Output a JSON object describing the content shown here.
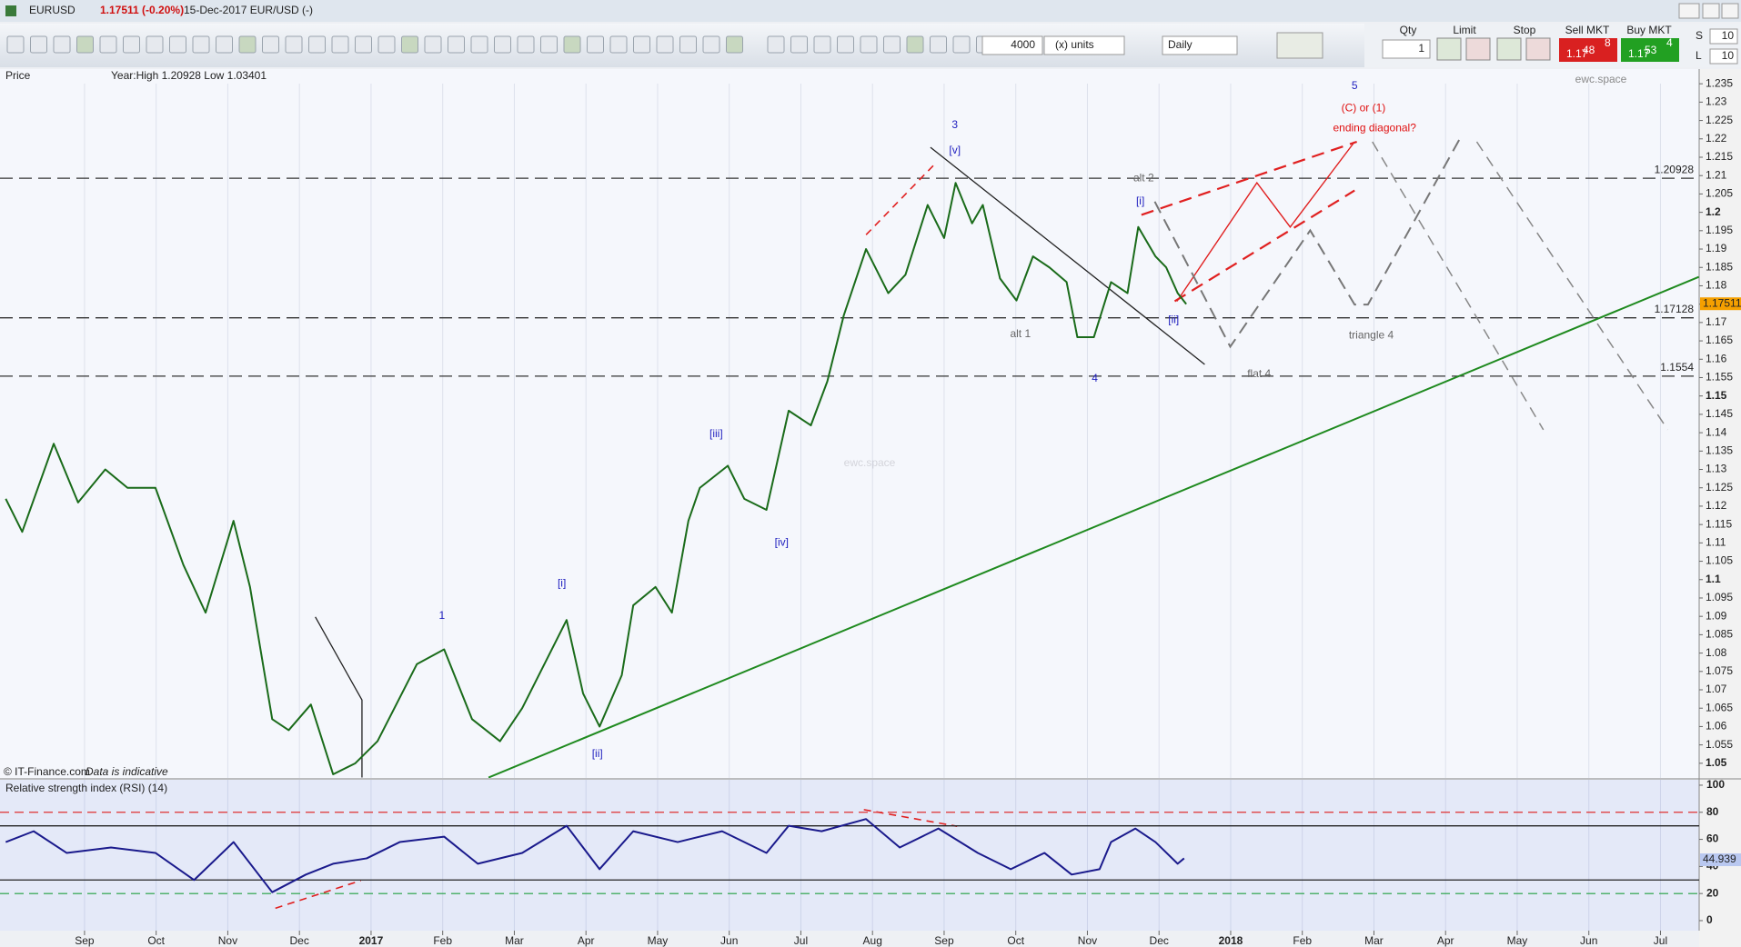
{
  "window": {
    "symbol": "EURUSD",
    "quote": "1.17511 (-0.20%)",
    "info": "15-Dec-2017 EUR/USD (-)"
  },
  "toolbar": {
    "qty_units": "4000",
    "units": "(x) units",
    "period": "Daily"
  },
  "order_panel": {
    "qty_label": "Qty",
    "qty": "1",
    "limit_label": "Limit",
    "stop_label": "Stop",
    "sell_label": "Sell MKT",
    "sell_prefix": "1.17",
    "sell_big": "48",
    "sell_pip": "8",
    "buy_label": "Buy MKT",
    "buy_prefix": "1.17",
    "buy_big": "53",
    "buy_pip": "4",
    "s_label": "S",
    "s_value": "10",
    "l_label": "L",
    "l_value": "10"
  },
  "chart_data": [
    {
      "type": "line",
      "panel_label": "Price",
      "title": "EURUSD",
      "stats": "Year:High 1.20928 Low 1.03401",
      "credit": "© IT-Finance.com",
      "note": "Data is indicative",
      "watermark": "ewc.space",
      "x": [
        -1.1,
        -0.87,
        -0.43,
        -0.09,
        0.29,
        0.6,
        0.99,
        1.38,
        1.69,
        2.08,
        2.31,
        2.62,
        2.85,
        3.16,
        3.47,
        3.78,
        4.09,
        4.64,
        5.02,
        5.41,
        5.8,
        6.11,
        6.42,
        6.73,
        6.96,
        7.19,
        7.5,
        7.66,
        7.97,
        8.2,
        8.43,
        8.59,
        8.98,
        9.21,
        9.52,
        9.83,
        10.14,
        10.37,
        10.6,
        10.91,
        11.22,
        11.46,
        11.77,
        12.0,
        12.16,
        12.39,
        12.54,
        12.78,
        13.01,
        13.24,
        13.47,
        13.71,
        13.86,
        14.09,
        14.33,
        14.56,
        14.71,
        14.95,
        15.1,
        15.26,
        15.38
      ],
      "values": [
        1.122,
        1.113,
        1.137,
        1.121,
        1.13,
        1.125,
        1.125,
        1.104,
        1.091,
        1.116,
        1.098,
        1.062,
        1.059,
        1.066,
        1.047,
        1.05,
        1.056,
        1.077,
        1.081,
        1.062,
        1.056,
        1.065,
        1.077,
        1.089,
        1.069,
        1.06,
        1.074,
        1.093,
        1.098,
        1.091,
        1.116,
        1.125,
        1.131,
        1.122,
        1.119,
        1.146,
        1.142,
        1.154,
        1.172,
        1.19,
        1.178,
        1.183,
        1.202,
        1.193,
        1.208,
        1.197,
        1.202,
        1.182,
        1.176,
        1.188,
        1.185,
        1.181,
        1.166,
        1.166,
        1.181,
        1.178,
        1.196,
        1.188,
        1.185,
        1.178,
        1.175
      ],
      "color": "#1a6b1a",
      "last_value": 1.17511,
      "xlim": [
        -1.18,
        22.54
      ],
      "ylim": [
        1.046,
        1.239
      ],
      "yticks": [
        1.05,
        1.055,
        1.06,
        1.065,
        1.07,
        1.075,
        1.08,
        1.085,
        1.09,
        1.095,
        1.1,
        1.105,
        1.11,
        1.115,
        1.12,
        1.125,
        1.13,
        1.135,
        1.14,
        1.145,
        1.15,
        1.155,
        1.16,
        1.165,
        1.17,
        1.175,
        1.18,
        1.185,
        1.19,
        1.195,
        1.2,
        1.205,
        1.21,
        1.215,
        1.22,
        1.225,
        1.23,
        1.235
      ],
      "levels": [
        1.20928,
        1.17128,
        1.1554
      ],
      "annotations": [
        {
          "text": "3",
          "color": "#1f1fbf"
        },
        {
          "text": "[v]",
          "color": "#1f1fbf"
        },
        {
          "text": "[iii]",
          "color": "#1f1fbf"
        },
        {
          "text": "[iv]",
          "color": "#1f1fbf"
        },
        {
          "text": "[i]",
          "color": "#1f1fbf"
        },
        {
          "text": "1",
          "color": "#1f1fbf"
        },
        {
          "text": "[ii]",
          "color": "#1f1fbf"
        },
        {
          "text": "alt 2",
          "color": "#666666"
        },
        {
          "text": "[i]",
          "color": "#1f1fbf"
        },
        {
          "text": "[ii]",
          "color": "#1f1fbf"
        },
        {
          "text": "alt 1",
          "color": "#666666"
        },
        {
          "text": "4",
          "color": "#1f1fbf"
        },
        {
          "text": "flat 4",
          "color": "#666666"
        },
        {
          "text": "triangle 4",
          "color": "#666666"
        },
        {
          "text": "5",
          "color": "#1f1fbf"
        },
        {
          "text": "(C) or (1)",
          "color": "#e01010"
        },
        {
          "text": "ending diagonal?",
          "color": "#e01010"
        }
      ]
    },
    {
      "type": "line",
      "title": "Relative strength index (RSI) (14)",
      "x": [
        -1.1,
        -0.71,
        -0.25,
        0.37,
        0.99,
        1.53,
        2.08,
        2.62,
        3.09,
        3.47,
        3.94,
        4.4,
        5.02,
        5.49,
        6.11,
        6.73,
        7.19,
        7.66,
        8.28,
        8.9,
        9.52,
        9.83,
        10.29,
        10.91,
        11.38,
        11.92,
        12.47,
        12.93,
        13.4,
        13.78,
        14.17,
        14.33,
        14.67,
        14.95,
        15.26,
        15.35
      ],
      "values": [
        58,
        66,
        50,
        54,
        50,
        30,
        58,
        21,
        34,
        42,
        46,
        58,
        62,
        42,
        50,
        70,
        38,
        66,
        58,
        66,
        50,
        70,
        66,
        75,
        54,
        68,
        50,
        38,
        50,
        34,
        38,
        58,
        68,
        58,
        42,
        46
      ],
      "color": "#1a1a8c",
      "last_value": 44.939,
      "xlim": [
        -1.18,
        22.54
      ],
      "ylim": [
        -7.4,
        104
      ],
      "yticks": [
        0,
        20,
        40,
        60,
        80,
        100
      ],
      "levels": [
        30,
        70
      ],
      "dashed_levels": [
        80,
        20
      ],
      "dashed_colors": [
        "#e03030",
        "#20a040"
      ],
      "xticks": [
        {
          "value": 0,
          "label": "Sep"
        },
        {
          "value": 1,
          "label": "Oct"
        },
        {
          "value": 2,
          "label": "Nov"
        },
        {
          "value": 3,
          "label": "Dec"
        },
        {
          "value": 4,
          "label": "2017"
        },
        {
          "value": 5,
          "label": "Feb"
        },
        {
          "value": 6,
          "label": "Mar"
        },
        {
          "value": 7,
          "label": "Apr"
        },
        {
          "value": 8,
          "label": "May"
        },
        {
          "value": 9,
          "label": "Jun"
        },
        {
          "value": 10,
          "label": "Jul"
        },
        {
          "value": 11,
          "label": "Aug"
        },
        {
          "value": 12,
          "label": "Sep"
        },
        {
          "value": 13,
          "label": "Oct"
        },
        {
          "value": 14,
          "label": "Nov"
        },
        {
          "value": 15,
          "label": "Dec"
        },
        {
          "value": 16,
          "label": "2018"
        },
        {
          "value": 17,
          "label": "Feb"
        },
        {
          "value": 18,
          "label": "Mar"
        },
        {
          "value": 19,
          "label": "Apr"
        },
        {
          "value": 20,
          "label": "May"
        },
        {
          "value": 21,
          "label": "Jun"
        },
        {
          "value": 22,
          "label": "Jul"
        }
      ]
    }
  ]
}
